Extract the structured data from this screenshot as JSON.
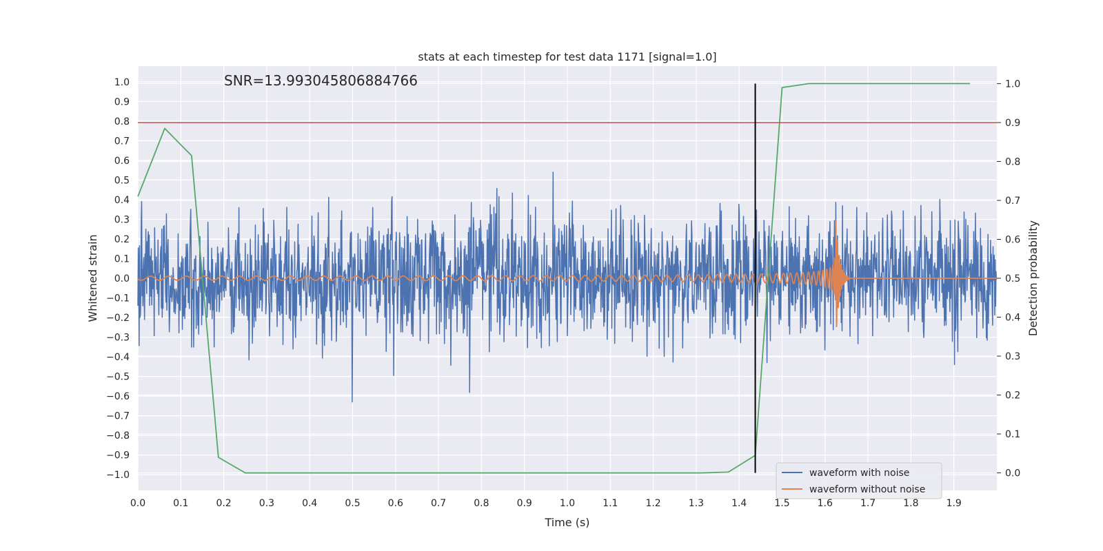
{
  "chart_data": {
    "type": "line",
    "title": "stats at each timestep for test data 1171 [signal=1.0]",
    "xlabel": "Time (s)",
    "ylabel_left": "Whitened strain",
    "ylabel_right": "Detection probability",
    "xlim": [
      0.0,
      2.0
    ],
    "ylim_left": [
      -1.08,
      1.08
    ],
    "ylim_right": [
      -0.045,
      1.045
    ],
    "x_ticks": [
      "0.0",
      "0.1",
      "0.2",
      "0.3",
      "0.4",
      "0.5",
      "0.6",
      "0.7",
      "0.8",
      "0.9",
      "1.0",
      "1.1",
      "1.2",
      "1.3",
      "1.4",
      "1.5",
      "1.6",
      "1.7",
      "1.8",
      "1.9"
    ],
    "y_ticks_left": [
      "1.0",
      "0.9",
      "0.8",
      "0.7",
      "0.6",
      "0.5",
      "0.4",
      "0.3",
      "0.2",
      "0.1",
      "0.0",
      "−0.1",
      "−0.2",
      "−0.3",
      "−0.4",
      "−0.5",
      "−0.6",
      "−0.7",
      "−0.8",
      "−0.9",
      "−1.0"
    ],
    "y_ticks_right": [
      "1.0",
      "0.9",
      "0.8",
      "0.7",
      "0.6",
      "0.5",
      "0.4",
      "0.3",
      "0.2",
      "0.1",
      "0.0"
    ],
    "annotation": "SNR=13.993045806884766",
    "grid": true,
    "legend_position": "lower-right",
    "series": [
      {
        "name": "waveform with noise",
        "axis": "left",
        "color": "#4c72b0",
        "kind": "noise",
        "duration": 2.0
      },
      {
        "name": "waveform without noise",
        "axis": "left",
        "color": "#dd8452",
        "kind": "chirp",
        "duration": 2.0
      },
      {
        "name": "",
        "axis": "right",
        "color": "#55a868",
        "x": [
          0.0,
          0.0625,
          0.125,
          0.1875,
          0.25,
          0.3125,
          1.3125,
          1.375,
          1.4375,
          1.5,
          1.5625,
          1.625,
          1.6875,
          1.75,
          1.8125,
          1.875,
          1.9375
        ],
        "values": [
          0.71,
          0.885,
          0.815,
          0.04,
          0.0,
          0.0,
          0.0,
          0.002,
          0.045,
          0.99,
          1.0,
          1.0,
          1.0,
          1.0,
          1.0,
          1.0,
          1.0
        ]
      }
    ],
    "threshold": {
      "axis": "right",
      "value": 0.9,
      "color": "#c44e52"
    },
    "event_marker": {
      "x": 1.4375,
      "y_range_right": [
        0.0,
        1.0
      ],
      "color": "#000000"
    }
  }
}
